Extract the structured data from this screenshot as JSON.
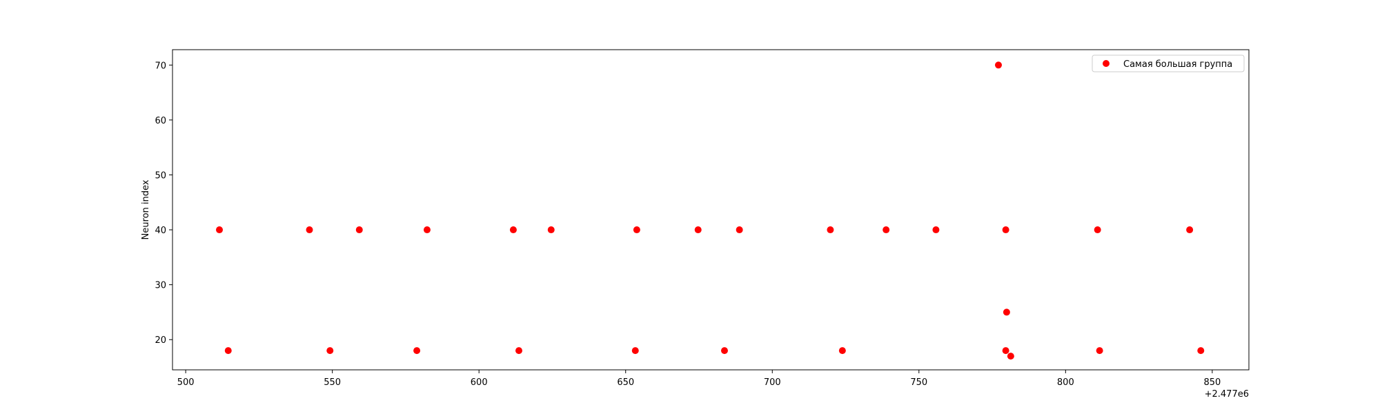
{
  "chart_data": {
    "type": "scatter",
    "title": "",
    "xlabel": "",
    "ylabel": "Neuron index",
    "x_offset_label": "+2.477e6",
    "xlim": [
      495.5,
      862.5
    ],
    "ylim": [
      14.5,
      72.8
    ],
    "x_ticks": [
      500,
      550,
      600,
      650,
      700,
      750,
      800,
      850
    ],
    "y_ticks": [
      20,
      30,
      40,
      50,
      60,
      70
    ],
    "grid": false,
    "legend_position": "top-right",
    "series": [
      {
        "name": "Самая большая группа",
        "color": "#ff0000",
        "points": [
          {
            "x": 511.5,
            "y": 40
          },
          {
            "x": 514.5,
            "y": 18
          },
          {
            "x": 542.2,
            "y": 40
          },
          {
            "x": 549.2,
            "y": 18
          },
          {
            "x": 559.2,
            "y": 40
          },
          {
            "x": 578.8,
            "y": 18
          },
          {
            "x": 582.3,
            "y": 40
          },
          {
            "x": 611.7,
            "y": 40
          },
          {
            "x": 613.6,
            "y": 18
          },
          {
            "x": 624.6,
            "y": 40
          },
          {
            "x": 653.3,
            "y": 18
          },
          {
            "x": 653.8,
            "y": 40
          },
          {
            "x": 674.7,
            "y": 40
          },
          {
            "x": 683.7,
            "y": 18
          },
          {
            "x": 688.8,
            "y": 40
          },
          {
            "x": 719.8,
            "y": 40
          },
          {
            "x": 723.9,
            "y": 18
          },
          {
            "x": 738.8,
            "y": 40
          },
          {
            "x": 755.8,
            "y": 40
          },
          {
            "x": 777.1,
            "y": 70
          },
          {
            "x": 779.6,
            "y": 40
          },
          {
            "x": 779.6,
            "y": 18
          },
          {
            "x": 779.9,
            "y": 25
          },
          {
            "x": 781.3,
            "y": 17
          },
          {
            "x": 810.9,
            "y": 40
          },
          {
            "x": 811.6,
            "y": 18
          },
          {
            "x": 842.3,
            "y": 40
          },
          {
            "x": 846.1,
            "y": 18
          }
        ]
      }
    ]
  }
}
